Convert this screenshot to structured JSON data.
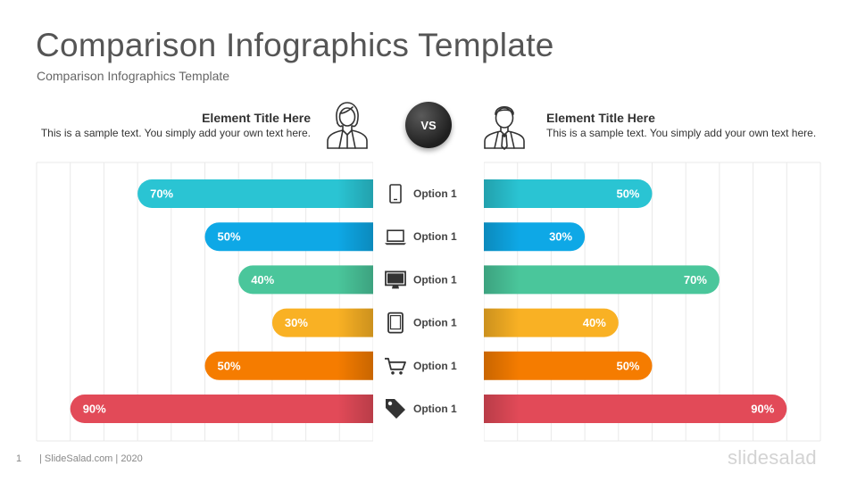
{
  "slide": {
    "title": "Comparison Infographics Template",
    "subtitle": "Comparison Infographics Template",
    "vs_label": "VS",
    "page_number": "1",
    "footer_text": "| SlideSalad.com | 2020",
    "logo_text": "slidesalad"
  },
  "left_element": {
    "title": "Element Title Here",
    "text": "This is a sample text. You simply add your own text here.",
    "icon": "businesswoman-icon"
  },
  "right_element": {
    "title": "Element Title Here",
    "text": "This is a sample text. You simply add your own text here.",
    "icon": "businessman-icon"
  },
  "chart_data": {
    "type": "bar",
    "orientation": "horizontal-butterfly",
    "categories": [
      "Option 1",
      "Option 1",
      "Option 1",
      "Option 1",
      "Option 1",
      "Option 1"
    ],
    "category_icons": [
      "smartphone-icon",
      "laptop-icon",
      "desktop-monitor-icon",
      "tablet-icon",
      "shopping-cart-icon",
      "price-tag-icon"
    ],
    "xlim": [
      0,
      100
    ],
    "grid": true,
    "series": [
      {
        "side": "left",
        "values": [
          70,
          50,
          40,
          30,
          50,
          90
        ],
        "labels": [
          "70%",
          "50%",
          "40%",
          "30%",
          "50%",
          "90%"
        ]
      },
      {
        "side": "right",
        "values": [
          50,
          30,
          70,
          40,
          50,
          90
        ],
        "labels": [
          "50%",
          "30%",
          "70%",
          "40%",
          "50%",
          "90%"
        ]
      }
    ],
    "colors": [
      "#2ac4d3",
      "#0ea8e6",
      "#4ac69b",
      "#f9b124",
      "#f57c00",
      "#e24a58"
    ]
  }
}
